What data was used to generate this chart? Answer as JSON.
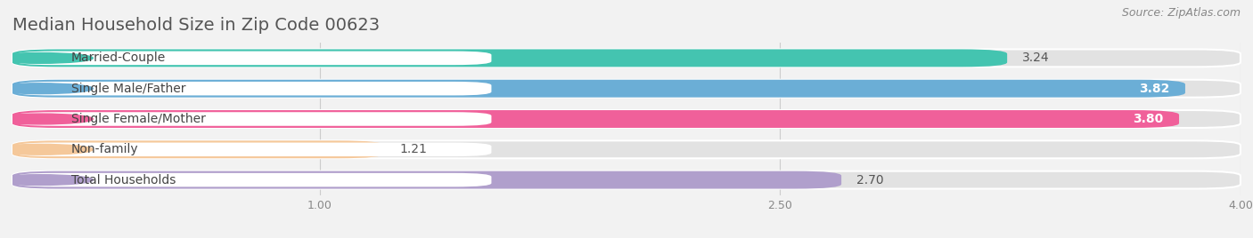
{
  "title": "Median Household Size in Zip Code 00623",
  "source": "Source: ZipAtlas.com",
  "categories": [
    "Married-Couple",
    "Single Male/Father",
    "Single Female/Mother",
    "Non-family",
    "Total Households"
  ],
  "values": [
    3.24,
    3.82,
    3.8,
    1.21,
    2.7
  ],
  "bar_colors": [
    "#44c4b0",
    "#6baed6",
    "#f0609a",
    "#f5c89a",
    "#b09fcc"
  ],
  "background_color": "#f2f2f2",
  "bar_bg_color": "#e2e2e2",
  "xlim_min": 0,
  "xlim_max": 4.0,
  "xticks": [
    1.0,
    2.5,
    4.0
  ],
  "title_fontsize": 14,
  "label_fontsize": 10,
  "value_fontsize": 10,
  "source_fontsize": 9
}
